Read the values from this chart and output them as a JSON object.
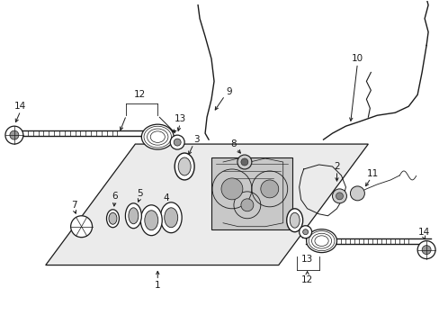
{
  "background_color": "#ffffff",
  "fig_width": 4.89,
  "fig_height": 3.6,
  "dpi": 100,
  "line_color": "#1a1a1a",
  "housing_color": "#e8e8e8",
  "diff_color": "#d0d0d0"
}
